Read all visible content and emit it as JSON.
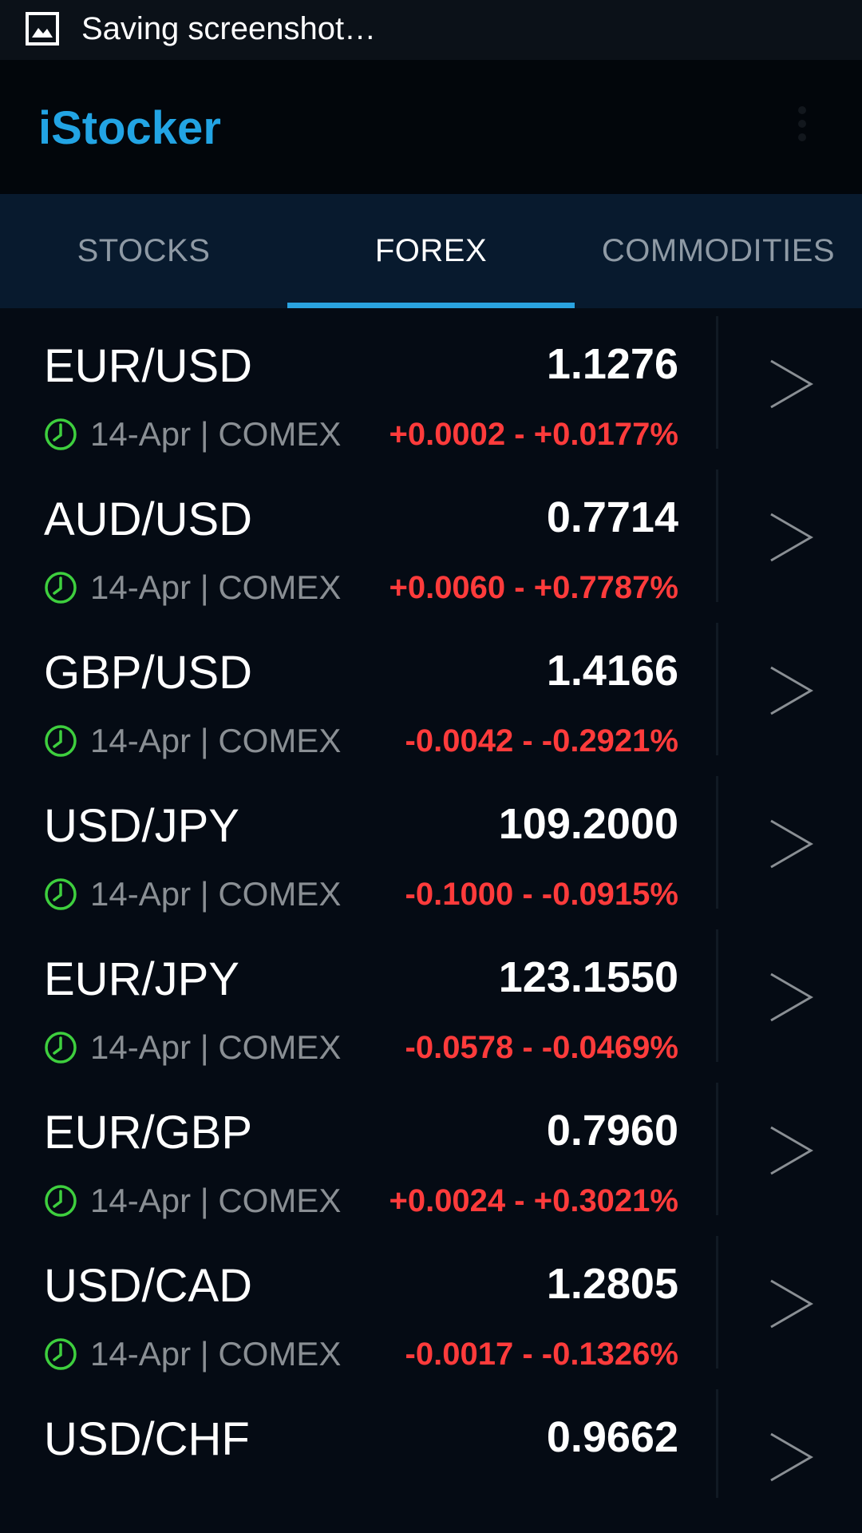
{
  "status_bar": {
    "notification": "Saving screenshot…",
    "icon": "image-icon"
  },
  "app": {
    "title": "iStocker",
    "menu_icon": "overflow-menu-icon"
  },
  "tabs": [
    {
      "label": "STOCKS",
      "active": false
    },
    {
      "label": "FOREX",
      "active": true
    },
    {
      "label": "COMMODITIES",
      "active": false
    }
  ],
  "colors": {
    "accent": "#2aa3e0",
    "title": "#22a4e4",
    "change": "#ff3b3b",
    "clock": "#3ecf3e",
    "background": "#050b14"
  },
  "rows": [
    {
      "pair": "EUR/USD",
      "price": "1.1276",
      "date": "14-Apr",
      "exchange": "COMEX",
      "change": "+0.0002 - +0.0177%"
    },
    {
      "pair": "AUD/USD",
      "price": "0.7714",
      "date": "14-Apr",
      "exchange": "COMEX",
      "change": "+0.0060 - +0.7787%"
    },
    {
      "pair": "GBP/USD",
      "price": "1.4166",
      "date": "14-Apr",
      "exchange": "COMEX",
      "change": "-0.0042 - -0.2921%"
    },
    {
      "pair": "USD/JPY",
      "price": "109.2000",
      "date": "14-Apr",
      "exchange": "COMEX",
      "change": "-0.1000 - -0.0915%"
    },
    {
      "pair": "EUR/JPY",
      "price": "123.1550",
      "date": "14-Apr",
      "exchange": "COMEX",
      "change": "-0.0578 - -0.0469%"
    },
    {
      "pair": "EUR/GBP",
      "price": "0.7960",
      "date": "14-Apr",
      "exchange": "COMEX",
      "change": "+0.0024 - +0.3021%"
    },
    {
      "pair": "USD/CAD",
      "price": "1.2805",
      "date": "14-Apr",
      "exchange": "COMEX",
      "change": "-0.0017 - -0.1326%"
    },
    {
      "pair": "USD/CHF",
      "price": "0.9662",
      "date": "",
      "exchange": "",
      "change": ""
    }
  ]
}
